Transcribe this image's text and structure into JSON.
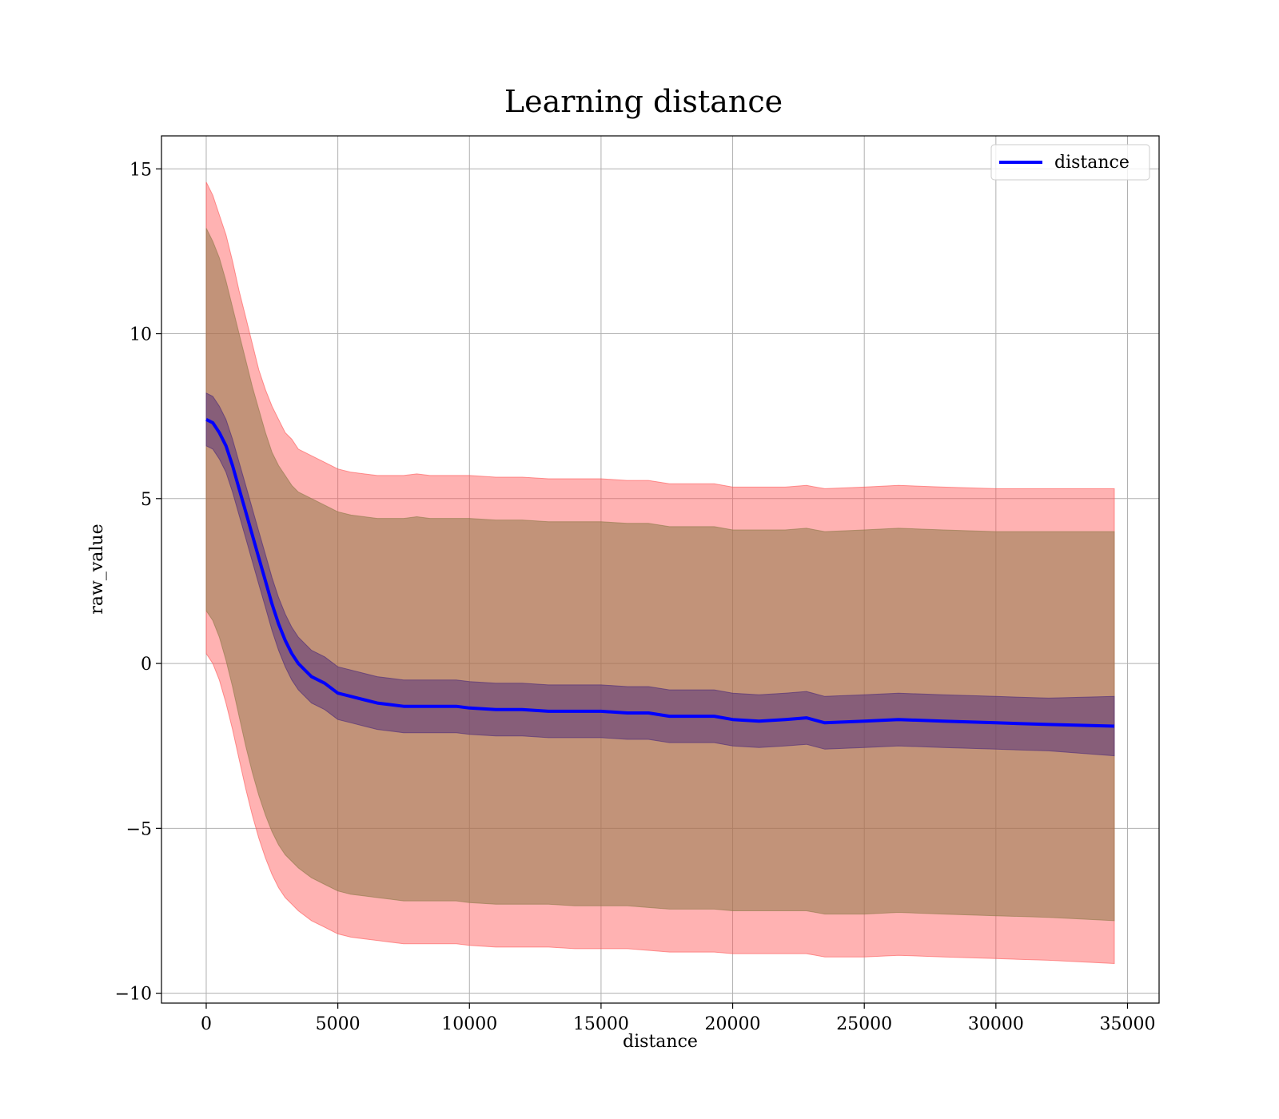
{
  "chart_data": {
    "type": "line",
    "title": "Learning distance",
    "xlabel": "distance",
    "ylabel": "raw_value",
    "xlim": [
      -1700,
      36200
    ],
    "ylim": [
      -10.3,
      16
    ],
    "xticks": [
      0,
      5000,
      10000,
      15000,
      20000,
      25000,
      30000,
      35000
    ],
    "xtick_labels": [
      "0",
      "5000",
      "10000",
      "15000",
      "20000",
      "25000",
      "30000",
      "35000"
    ],
    "yticks": [
      -10,
      -5,
      0,
      5,
      10,
      15
    ],
    "ytick_labels": [
      "−10",
      "−5",
      "0",
      "5",
      "10",
      "15"
    ],
    "grid": true,
    "legend": {
      "position": "top-right",
      "entries": [
        "distance"
      ]
    },
    "colors": {
      "line": "#0000ff",
      "outer_band": "#ff5555",
      "middle_band": "#8f7a4a",
      "inner_band": "#4b2a7a"
    },
    "x": [
      0,
      250,
      500,
      750,
      1000,
      1250,
      1500,
      1750,
      2000,
      2250,
      2500,
      2750,
      3000,
      3250,
      3500,
      4000,
      4500,
      5000,
      5500,
      6000,
      6500,
      7000,
      7500,
      8000,
      8500,
      9000,
      9500,
      10000,
      11000,
      12000,
      13000,
      14000,
      15000,
      16000,
      16800,
      17600,
      18500,
      19300,
      20000,
      21000,
      22000,
      22800,
      23500,
      25000,
      26300,
      28000,
      30000,
      32000,
      34500
    ],
    "series": [
      {
        "name": "distance",
        "values": [
          7.4,
          7.3,
          7.0,
          6.6,
          6.0,
          5.3,
          4.6,
          3.9,
          3.2,
          2.5,
          1.8,
          1.2,
          0.7,
          0.3,
          0.0,
          -0.4,
          -0.6,
          -0.9,
          -1.0,
          -1.1,
          -1.2,
          -1.25,
          -1.3,
          -1.3,
          -1.3,
          -1.3,
          -1.3,
          -1.35,
          -1.4,
          -1.4,
          -1.45,
          -1.45,
          -1.45,
          -1.5,
          -1.5,
          -1.6,
          -1.6,
          -1.6,
          -1.7,
          -1.75,
          -1.7,
          -1.65,
          -1.8,
          -1.75,
          -1.7,
          -1.75,
          -1.8,
          -1.85,
          -1.9
        ]
      }
    ],
    "bands": [
      {
        "upper": [
          14.6,
          14.2,
          13.6,
          13.0,
          12.2,
          11.3,
          10.5,
          9.7,
          8.9,
          8.3,
          7.8,
          7.4,
          7.0,
          6.8,
          6.5,
          6.3,
          6.1,
          5.9,
          5.8,
          5.75,
          5.7,
          5.7,
          5.7,
          5.75,
          5.7,
          5.7,
          5.7,
          5.7,
          5.65,
          5.65,
          5.6,
          5.6,
          5.6,
          5.55,
          5.55,
          5.45,
          5.45,
          5.45,
          5.35,
          5.35,
          5.35,
          5.4,
          5.3,
          5.35,
          5.4,
          5.35,
          5.3,
          5.3,
          5.3
        ],
        "lower": [
          0.3,
          0.0,
          -0.5,
          -1.2,
          -2.0,
          -2.9,
          -3.8,
          -4.6,
          -5.3,
          -5.9,
          -6.4,
          -6.8,
          -7.1,
          -7.3,
          -7.5,
          -7.8,
          -8.0,
          -8.2,
          -8.3,
          -8.35,
          -8.4,
          -8.45,
          -8.5,
          -8.5,
          -8.5,
          -8.5,
          -8.5,
          -8.55,
          -8.6,
          -8.6,
          -8.6,
          -8.65,
          -8.65,
          -8.65,
          -8.7,
          -8.75,
          -8.75,
          -8.75,
          -8.8,
          -8.8,
          -8.8,
          -8.8,
          -8.9,
          -8.9,
          -8.85,
          -8.9,
          -8.95,
          -9.0,
          -9.1
        ]
      },
      {
        "upper": [
          13.2,
          12.8,
          12.3,
          11.6,
          10.8,
          10.0,
          9.2,
          8.4,
          7.7,
          7.0,
          6.4,
          6.0,
          5.7,
          5.4,
          5.2,
          5.0,
          4.8,
          4.6,
          4.5,
          4.45,
          4.4,
          4.4,
          4.4,
          4.45,
          4.4,
          4.4,
          4.4,
          4.4,
          4.35,
          4.35,
          4.3,
          4.3,
          4.3,
          4.25,
          4.25,
          4.15,
          4.15,
          4.15,
          4.05,
          4.05,
          4.05,
          4.1,
          4.0,
          4.05,
          4.1,
          4.05,
          4.0,
          4.0,
          4.0
        ],
        "lower": [
          1.6,
          1.3,
          0.8,
          0.1,
          -0.7,
          -1.6,
          -2.5,
          -3.3,
          -4.0,
          -4.6,
          -5.1,
          -5.5,
          -5.8,
          -6.0,
          -6.2,
          -6.5,
          -6.7,
          -6.9,
          -7.0,
          -7.05,
          -7.1,
          -7.15,
          -7.2,
          -7.2,
          -7.2,
          -7.2,
          -7.2,
          -7.25,
          -7.3,
          -7.3,
          -7.3,
          -7.35,
          -7.35,
          -7.35,
          -7.4,
          -7.45,
          -7.45,
          -7.45,
          -7.5,
          -7.5,
          -7.5,
          -7.5,
          -7.6,
          -7.6,
          -7.55,
          -7.6,
          -7.65,
          -7.7,
          -7.8
        ]
      },
      {
        "upper": [
          8.2,
          8.1,
          7.8,
          7.4,
          6.8,
          6.1,
          5.4,
          4.7,
          4.0,
          3.3,
          2.6,
          2.0,
          1.5,
          1.1,
          0.8,
          0.4,
          0.2,
          -0.1,
          -0.2,
          -0.3,
          -0.4,
          -0.45,
          -0.5,
          -0.5,
          -0.5,
          -0.5,
          -0.5,
          -0.55,
          -0.6,
          -0.6,
          -0.65,
          -0.65,
          -0.65,
          -0.7,
          -0.7,
          -0.8,
          -0.8,
          -0.8,
          -0.9,
          -0.95,
          -0.9,
          -0.85,
          -1.0,
          -0.95,
          -0.9,
          -0.95,
          -1.0,
          -1.05,
          -1.0
        ],
        "lower": [
          6.6,
          6.5,
          6.2,
          5.8,
          5.2,
          4.5,
          3.8,
          3.1,
          2.4,
          1.7,
          1.0,
          0.4,
          -0.1,
          -0.5,
          -0.8,
          -1.2,
          -1.4,
          -1.7,
          -1.8,
          -1.9,
          -2.0,
          -2.05,
          -2.1,
          -2.1,
          -2.1,
          -2.1,
          -2.1,
          -2.15,
          -2.2,
          -2.2,
          -2.25,
          -2.25,
          -2.25,
          -2.3,
          -2.3,
          -2.4,
          -2.4,
          -2.4,
          -2.5,
          -2.55,
          -2.5,
          -2.45,
          -2.6,
          -2.55,
          -2.5,
          -2.55,
          -2.6,
          -2.65,
          -2.8
        ]
      }
    ]
  }
}
